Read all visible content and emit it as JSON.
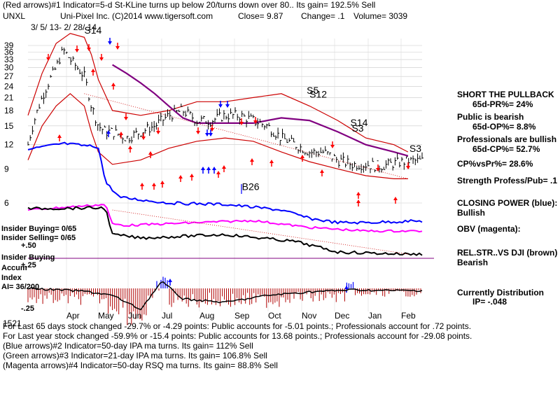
{
  "header": {
    "line1": "(Red arrows)#1 Indicator=5-d St-KLine turns up below 20/turns down over 80.. Its gain= 192.5% Sell",
    "ticker": "UNXL",
    "company": "Uni-Pixel Inc.  (C)2014 www.tigersoft.com",
    "close": "Close=  9.87",
    "change": "Change= .1",
    "volume": "Volume= 3039",
    "date_range": "3/ 5/ 13- 2/ 28/ 14"
  },
  "right_panel": {
    "title": "SHORT THE PULLBACK",
    "pr": "65d-PR%= 24%",
    "public": "Public is bearish",
    "op": "65d-OP%= 8.8%",
    "prof": "Professionals are bullish",
    "cp": "65d-CP%= 52.7%",
    "cpvspr": "CP%vsPr%=  28.6%",
    "strength": "Strength Profess/Pub= .1",
    "closing_power": "CLOSING POWER (blue):",
    "cp_state": "Bullish",
    "obv": "OBV (magenta):",
    "relstr": "REL.STR..VS DJI (brown)",
    "relstr_state": "Bearish",
    "dist": "Currently Distribution",
    "ip": "IP= -.048"
  },
  "left_labels": {
    "insider_buying": "Insider Buying= 0/65",
    "insider_selling": "Insider Selling= 0/65",
    "plus50": "+.50",
    "insider_buying2": "Insider Buying",
    "accum": "Accum",
    "plus25": "+.25",
    "index": "Index",
    "ai": "AI= 36/200",
    "minus25": "-.25"
  },
  "bottom_text": [
    "For Last 65 days stock changed -29.7% or -4.29 points:  Public accounts for -5.01 points.;  Professionals account for  .72 points.",
    "For Last year stock changed -59.9% or -15.4 points:  Public accounts for  13.68 points.;  Professionals account for -29.08 points.",
    "(Blue arrows)#2 Indicator=50-day IPA ma turns. Its gain= 112% Sell",
    "(Green arrows)#3 Indicator=21-day IPA ma turns. Its gain= 106.8% Sell",
    "(Magenta arrows)#4 Indicator=50-day RSQ ma turns. Its gain= 88.8% Sell"
  ],
  "bottom_overlap": "1521",
  "colors": {
    "price": "#000000",
    "upper_band": "#cc0000",
    "lower_band": "#cc0000",
    "ma50": "#800080",
    "closing_power": "#0000ff",
    "obv": "#ff00ff",
    "relstr": "#000000",
    "accum_pos": "#0000ff",
    "accum_neg": "#b00000",
    "sell_arrow": "#ff0000",
    "buy_arrow": "#0000ff"
  },
  "chart_data": {
    "type": "line",
    "title": "Uni-Pixel Inc.",
    "yscale": "log",
    "price_ticks": [
      39,
      36,
      33,
      30,
      27,
      24,
      21,
      18,
      15,
      12,
      9,
      6
    ],
    "months": [
      "Apr",
      "May",
      "Jun",
      "Jul",
      "Aug",
      "Sep",
      "Oct",
      "Nov",
      "Dec",
      "Jan",
      "Feb"
    ],
    "annotations": [
      {
        "label": "S14",
        "x": 40,
        "y": 45
      },
      {
        "label": "S5",
        "x": 198,
        "y": 22
      },
      {
        "label": "S12",
        "x": 200,
        "y": 21
      },
      {
        "label": "S14",
        "x": 229,
        "y": 15
      },
      {
        "label": "S3",
        "x": 230,
        "y": 14
      },
      {
        "label": "S3",
        "x": 271,
        "y": 11
      },
      {
        "label": "B26",
        "x": 152,
        "y": 7
      }
    ],
    "series": [
      {
        "name": "Close",
        "x": [
          0,
          10,
          20,
          25,
          30,
          35,
          40,
          45,
          50,
          55,
          60,
          70,
          80,
          90,
          100,
          110,
          120,
          130,
          140,
          150,
          160,
          170,
          180,
          190,
          200,
          210,
          220,
          230,
          240,
          250,
          260,
          270
        ],
        "values": [
          12,
          21,
          30,
          37,
          33,
          30,
          27,
          19,
          15,
          14,
          14,
          13,
          14,
          15,
          17,
          18,
          16,
          16,
          17,
          17,
          16,
          15,
          13,
          12,
          11,
          11,
          10,
          9.5,
          9.5,
          9.3,
          9.6,
          9.9
        ]
      },
      {
        "name": "Upper band",
        "x": [
          0,
          10,
          20,
          30,
          40,
          45,
          50,
          60,
          80,
          100,
          120,
          140,
          160,
          180,
          200,
          220,
          240,
          260,
          270
        ],
        "values": [
          17,
          28,
          40,
          45,
          43,
          35,
          26,
          18,
          17,
          18,
          20,
          20,
          21,
          22,
          19,
          16,
          13,
          12,
          11
        ]
      },
      {
        "name": "Lower band",
        "x": [
          0,
          10,
          20,
          30,
          40,
          45,
          50,
          60,
          80,
          100,
          120,
          140,
          160,
          180,
          200,
          220,
          240,
          260,
          270
        ],
        "values": [
          10,
          15,
          19,
          22,
          19,
          14,
          11,
          9.5,
          10,
          11.5,
          12.5,
          13,
          12.5,
          11,
          9.8,
          9,
          8.3,
          8,
          8
        ]
      },
      {
        "name": "50-day ma",
        "x": [
          60,
          70,
          80,
          90,
          100,
          110,
          120,
          140,
          160,
          180,
          200,
          220,
          240,
          260,
          270
        ],
        "values": [
          31,
          28,
          25,
          22,
          19,
          16.5,
          15.5,
          15.5,
          15.5,
          16.5,
          16,
          14,
          12,
          11,
          10.5
        ]
      }
    ]
  }
}
